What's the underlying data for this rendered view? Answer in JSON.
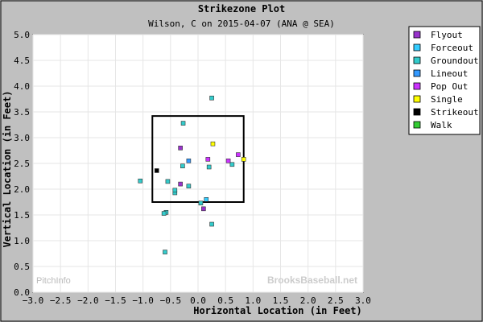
{
  "chart_data": {
    "type": "scatter",
    "title": "Strikezone Plot",
    "subtitle": "Wilson, C on 2015-04-07 (ANA @ SEA)",
    "xlabel": "Horizontal Location (in Feet)",
    "ylabel": "Vertical Location (in Feet)",
    "xlim": [
      -3.0,
      3.0
    ],
    "ylim": [
      0.0,
      5.0
    ],
    "xticks": [
      "−3.0",
      "−2.5",
      "−2.0",
      "−1.5",
      "−1.0",
      "−0.5",
      "0.0",
      "0.5",
      "1.0",
      "1.5",
      "2.0",
      "2.5",
      "3.0"
    ],
    "yticks": [
      "0.0",
      "0.5",
      "1.0",
      "1.5",
      "2.0",
      "2.5",
      "3.0",
      "3.5",
      "4.0",
      "4.5",
      "5.0"
    ],
    "grid": true,
    "legend_position": "top-right outside",
    "strike_zone": {
      "x": [
        -0.83,
        0.83
      ],
      "y": [
        1.75,
        3.42
      ]
    },
    "watermark_left": "PitchInfo",
    "watermark_right": "BrooksBaseball.net",
    "series": [
      {
        "name": "Flyout",
        "color": "#9933cc",
        "points": [
          [
            -0.32,
            2.8
          ],
          [
            0.1,
            1.62
          ],
          [
            -0.32,
            2.1
          ]
        ]
      },
      {
        "name": "Forceout",
        "color": "#33ccff",
        "points": [
          [
            0.15,
            1.8
          ]
        ]
      },
      {
        "name": "Groundout",
        "color": "#33cccc",
        "points": [
          [
            -1.05,
            2.16
          ],
          [
            -0.55,
            2.15
          ],
          [
            -0.42,
            1.93
          ],
          [
            -0.42,
            1.98
          ],
          [
            -0.17,
            2.06
          ],
          [
            -0.28,
            2.45
          ],
          [
            0.2,
            2.43
          ],
          [
            0.62,
            2.48
          ],
          [
            -0.58,
            1.55
          ],
          [
            -0.62,
            1.53
          ],
          [
            -0.6,
            0.78
          ],
          [
            0.25,
            1.32
          ],
          [
            0.25,
            3.77
          ],
          [
            -0.27,
            3.28
          ],
          [
            0.05,
            1.73
          ]
        ]
      },
      {
        "name": "Lineout",
        "color": "#3399ff",
        "points": [
          [
            -0.17,
            2.55
          ]
        ]
      },
      {
        "name": "Pop Out",
        "color": "#cc33ff",
        "points": [
          [
            0.18,
            2.58
          ],
          [
            0.55,
            2.55
          ],
          [
            0.73,
            2.67
          ]
        ]
      },
      {
        "name": "Single",
        "color": "#ffff00",
        "points": [
          [
            0.27,
            2.88
          ],
          [
            0.83,
            2.58
          ]
        ]
      },
      {
        "name": "Strikeout",
        "color": "#000000",
        "points": [
          [
            -0.75,
            2.36
          ]
        ]
      },
      {
        "name": "Walk",
        "color": "#33cc33",
        "points": []
      }
    ]
  }
}
